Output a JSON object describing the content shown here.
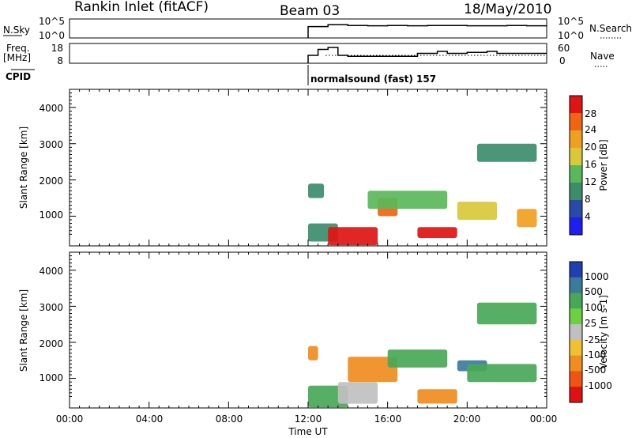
{
  "header": {
    "station": "Rankin Inlet (fitACF)",
    "beam": "Beam 03",
    "date": "18/May/2010"
  },
  "panel_sky": {
    "left_label": "N.Sky",
    "left_ticks": [
      "10^5",
      "10^0"
    ],
    "right_ticks": [
      "10^5",
      "10^0"
    ],
    "right_label": "N.Search"
  },
  "panel_freq": {
    "left_label_top": "Freq.",
    "left_label_unit": "[MHz]",
    "left_ticks": [
      "18",
      "8"
    ],
    "right_ticks": [
      "60",
      "0"
    ],
    "right_label": "Nave"
  },
  "cpid": {
    "label": "CPID",
    "text": "normalsound (fast) 157"
  },
  "x_axis": {
    "label": "Time UT",
    "ticks": [
      "00:00",
      "04:00",
      "08:00",
      "12:00",
      "16:00",
      "20:00",
      "00:00"
    ]
  },
  "power_panel": {
    "ylabel": "Slant Range [km]",
    "yticks": [
      "1000",
      "2000",
      "3000",
      "4000"
    ],
    "colorbar_label": "Power [dB]",
    "colorbar_ticks": [
      "4",
      "8",
      "12",
      "16",
      "20",
      "24",
      "28"
    ],
    "colors": [
      "#1e1ef0",
      "#2a4aa8",
      "#3c8c6c",
      "#5ab85a",
      "#d8c83a",
      "#f0a020",
      "#f06414",
      "#e01414"
    ]
  },
  "velocity_panel": {
    "ylabel": "Slant Range [km]",
    "yticks": [
      "1000",
      "2000",
      "3000",
      "4000"
    ],
    "colorbar_label": "Velocity [m s-1]",
    "colorbar_ticks": [
      "1000",
      "500",
      "100",
      "25",
      "-25",
      "-100",
      "-500",
      "-1000"
    ],
    "colors": [
      "#2040b0",
      "#3c7a9c",
      "#48a858",
      "#6cd040",
      "#c0c0c0",
      "#f0c030",
      "#f08c20",
      "#f05414",
      "#e01010"
    ]
  },
  "chart_data": [
    {
      "type": "line",
      "title": "N.Sky",
      "x": [
        "12:00",
        "13:00",
        "14:00",
        "15:00",
        "16:00",
        "17:00",
        "18:00",
        "19:00",
        "20:00",
        "21:00",
        "22:00",
        "23:00",
        "24:00"
      ],
      "series": [
        {
          "name": "N.Sky",
          "values": [
            3,
            3.5,
            3.3,
            3.2,
            3.3,
            3.2,
            3.3,
            3.3,
            3.2,
            3.2,
            3.3,
            3.2,
            3.3
          ]
        }
      ],
      "xlim": [
        "00:00",
        "24:00"
      ],
      "ylim": [
        0,
        5
      ],
      "log_scale": true
    },
    {
      "type": "line",
      "title": "Freq.",
      "x": [
        "12:00",
        "12:30",
        "13:00",
        "13:30",
        "14:00",
        "16:00",
        "17:30",
        "18:00",
        "18:30",
        "19:00",
        "20:00",
        "21:00",
        "21:30",
        "22:00",
        "24:00"
      ],
      "series": [
        {
          "name": "Freq.",
          "values": [
            12,
            15,
            16,
            12,
            11.5,
            11.5,
            13,
            13,
            14,
            13,
            13.5,
            14,
            13,
            13,
            13
          ]
        }
      ],
      "xlim": [
        "00:00",
        "24:00"
      ],
      "ylim": [
        8,
        18
      ]
    },
    {
      "type": "heatmap",
      "title": "Power [dB]",
      "xlabel": "Time UT",
      "ylabel": "Slant Range [km]",
      "xlim": [
        "00:00",
        "24:00"
      ],
      "ylim": [
        180,
        4500
      ],
      "zlim": [
        0,
        30
      ],
      "cells": [
        {
          "t": [
            12.0,
            12.8
          ],
          "r": [
            1500,
            1900
          ],
          "z": 10
        },
        {
          "t": [
            12.0,
            13.5
          ],
          "r": [
            300,
            800
          ],
          "z": 8
        },
        {
          "t": [
            13.0,
            15.5
          ],
          "r": [
            200,
            700
          ],
          "z": 28
        },
        {
          "t": [
            15.5,
            16.5
          ],
          "r": [
            1000,
            1500
          ],
          "z": 26
        },
        {
          "t": [
            15.0,
            19.0
          ],
          "r": [
            1200,
            1700
          ],
          "z": 14
        },
        {
          "t": [
            17.5,
            19.5
          ],
          "r": [
            400,
            700
          ],
          "z": 30
        },
        {
          "t": [
            19.5,
            21.5
          ],
          "r": [
            900,
            1400
          ],
          "z": 16
        },
        {
          "t": [
            22.5,
            23.5
          ],
          "r": [
            700,
            1200
          ],
          "z": 22
        },
        {
          "t": [
            20.5,
            23.5
          ],
          "r": [
            2500,
            3000
          ],
          "z": 8
        }
      ]
    },
    {
      "type": "heatmap",
      "title": "Velocity [m s-1]",
      "xlabel": "Time UT",
      "ylabel": "Slant Range [km]",
      "xlim": [
        "00:00",
        "24:00"
      ],
      "ylim": [
        180,
        4500
      ],
      "zlim": [
        -1000,
        1000
      ],
      "cells": [
        {
          "t": [
            12.0,
            12.5
          ],
          "r": [
            1500,
            1900
          ],
          "z": -200
        },
        {
          "t": [
            12.0,
            14.0
          ],
          "r": [
            200,
            800
          ],
          "z": 150
        },
        {
          "t": [
            13.5,
            15.5
          ],
          "r": [
            300,
            900
          ],
          "z": 0
        },
        {
          "t": [
            14.0,
            16.5
          ],
          "r": [
            900,
            1600
          ],
          "z": -400
        },
        {
          "t": [
            16.0,
            19.0
          ],
          "r": [
            1300,
            1800
          ],
          "z": 100
        },
        {
          "t": [
            17.5,
            19.5
          ],
          "r": [
            300,
            700
          ],
          "z": -300
        },
        {
          "t": [
            19.5,
            21.0
          ],
          "r": [
            1200,
            1500
          ],
          "z": 900
        },
        {
          "t": [
            20.0,
            23.5
          ],
          "r": [
            900,
            1400
          ],
          "z": 400
        },
        {
          "t": [
            20.5,
            23.5
          ],
          "r": [
            2500,
            3100
          ],
          "z": 300
        }
      ]
    }
  ]
}
